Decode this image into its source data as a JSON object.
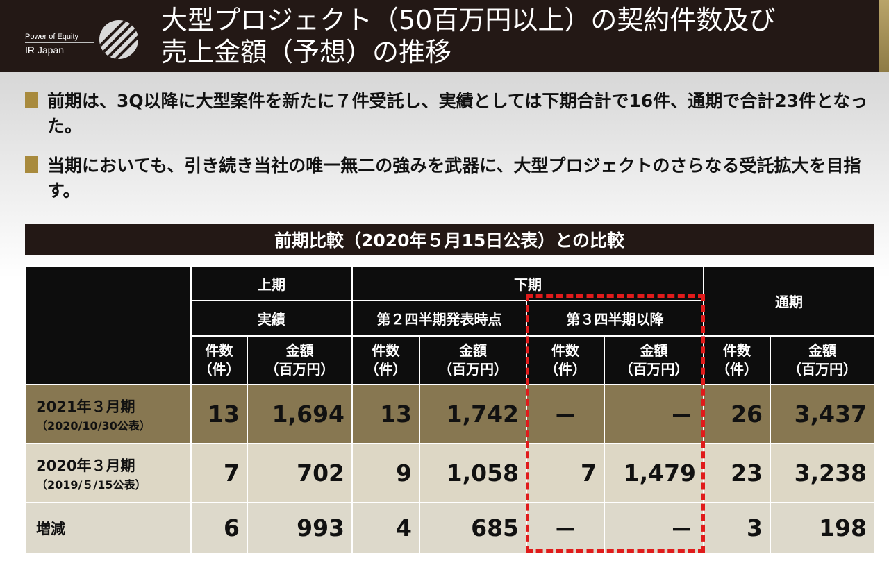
{
  "header": {
    "logo_small": "Power of Equity",
    "logo_big": "IR Japan",
    "title_line1": "大型プロジェクト（50百万円以上）の契約件数及び",
    "title_line2": "売上金額（予想）の推移"
  },
  "bullets": [
    "前期は、3Q以降に大型案件を新たに７件受託し、実績としては下期合計で16件、通期で合計23件となった。",
    "当期においても、引き続き当社の唯一無二の強みを武器に、大型プロジェクトのさらなる受託拡大を目指す。"
  ],
  "section_title": "前期比較（2020年５月15日公表）との比較",
  "table": {
    "group_first_half": "上期",
    "group_second_half": "下期",
    "group_full_year": "通期",
    "sub_actual": "実績",
    "sub_q2": "第２四半期発表時点",
    "sub_q3": "第３四半期以降",
    "col_count_1": "件数",
    "col_count_2": "（件）",
    "col_amount_1": "金額",
    "col_amount_2": "（百万円）",
    "rows": [
      {
        "label": "2021年３月期",
        "sub": "（2020/10/30公表）",
        "values": [
          "13",
          "1,694",
          "13",
          "1,742",
          "－",
          "－",
          "26",
          "3,437"
        ]
      },
      {
        "label": "2020年３月期",
        "sub": "（2019/５/15公表）",
        "values": [
          "7",
          "702",
          "9",
          "1,058",
          "7",
          "1,479",
          "23",
          "3,238"
        ]
      },
      {
        "label": "増減",
        "sub": "",
        "values": [
          "6",
          "993",
          "4",
          "685",
          "－",
          "－",
          "3",
          "198"
        ]
      }
    ]
  },
  "colors": {
    "header_bg": "#231815",
    "accent_gold": "#a88a3d",
    "row_highlight": "#877751",
    "row_light": "#ddd7c5",
    "dashed_box": "#e01b1b"
  }
}
